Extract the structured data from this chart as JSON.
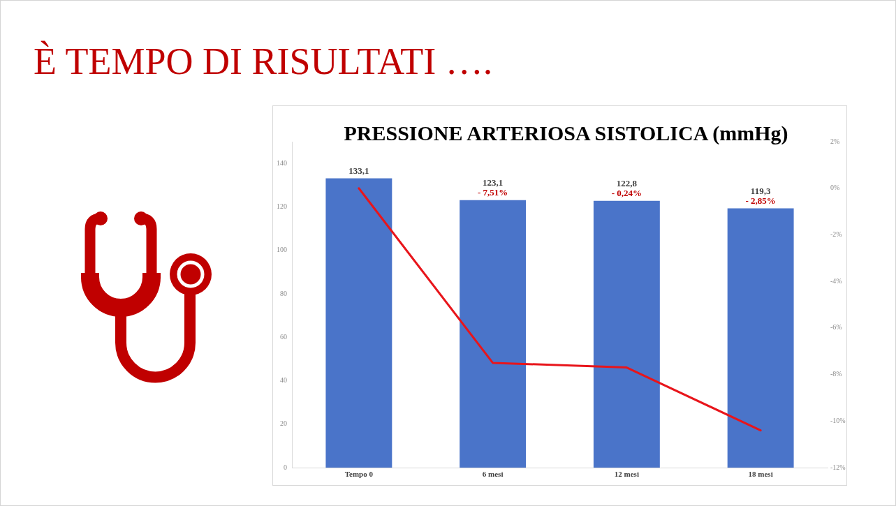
{
  "chart_data": {
    "type": "bar",
    "title": "È TEMPO DI RISULTATI ….",
    "subtitle": "PRESSIONE ARTERIOSA SISTOLICA (mmHg)",
    "categories": [
      "Tempo 0",
      "6 mesi",
      "12 mesi",
      "18 mesi"
    ],
    "series": [
      {
        "color": "#4a74c9",
        "values": [
          133.1,
          123.1,
          122.8,
          119.3
        ],
        "value_labels": [
          "133,1",
          "123,1",
          "122,8",
          "119,3"
        ]
      },
      {
        "type": "line",
        "axis": "y2",
        "color": "#e8151b",
        "values": [
          0,
          -7.5,
          -7.7,
          -10.4
        ]
      }
    ],
    "ylim": [
      0,
      150
    ],
    "yticks": [
      0,
      20,
      40,
      60,
      80,
      100,
      120,
      140
    ],
    "y2lim": [
      -12,
      2
    ],
    "y2ticks": [
      {
        "value": -12,
        "label": "-12%"
      },
      {
        "value": -10,
        "label": "-10%"
      },
      {
        "value": -8,
        "label": "-8%"
      },
      {
        "value": -6,
        "label": "-6%"
      },
      {
        "value": -4,
        "label": "-4%"
      },
      {
        "value": -2,
        "label": "-2%"
      },
      {
        "value": 0,
        "label": "0%"
      },
      {
        "value": 2,
        "label": "2%"
      }
    ],
    "grid": false,
    "legend": false,
    "marker": "none",
    "line_style": "solid",
    "annotations": [
      {
        "text": "- 7,51%",
        "x": "6 mesi",
        "y": 123.1
      },
      {
        "text": "- 0,24%",
        "x": "12 mesi",
        "y": 122.8
      },
      {
        "text": "- 2,85%",
        "x": "18 mesi",
        "y": 119.3
      }
    ]
  }
}
